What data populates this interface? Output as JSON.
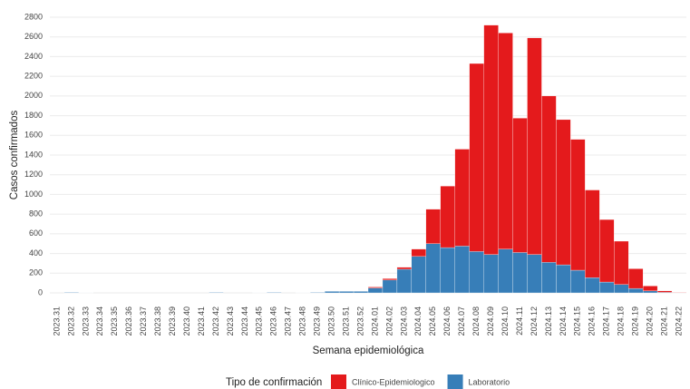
{
  "chart_data": {
    "type": "stacked_bar",
    "x_label": "Semana epidemiológica",
    "y_label": "Casos confirmados",
    "legend_title": "Tipo de confirmación",
    "legend_position": "bottom",
    "grid": true,
    "categories": [
      "2023.31",
      "2023.32",
      "2023.33",
      "2023.34",
      "2023.35",
      "2023.36",
      "2023.37",
      "2023.38",
      "2023.39",
      "2023.40",
      "2023.41",
      "2023.42",
      "2023.43",
      "2023.44",
      "2023.45",
      "2023.46",
      "2023.47",
      "2023.48",
      "2023.49",
      "2023.50",
      "2023.51",
      "2023.52",
      "2024.01",
      "2024.02",
      "2024.03",
      "2024.04",
      "2024.05",
      "2024.06",
      "2024.07",
      "2024.08",
      "2024.09",
      "2024.10",
      "2024.11",
      "2024.12",
      "2024.13",
      "2024.14",
      "2024.15",
      "2024.16",
      "2024.17",
      "2024.18",
      "2024.19",
      "2024.20",
      "2024.21",
      "2024.22"
    ],
    "series": [
      {
        "name": "Clínico-Epidemiologico",
        "color": "#e41a1c",
        "values": [
          0,
          0,
          0,
          0,
          0,
          0,
          0,
          0,
          0,
          0,
          0,
          0,
          0,
          0,
          0,
          0,
          0,
          0,
          0,
          0,
          0,
          0,
          10,
          15,
          20,
          75,
          350,
          625,
          985,
          1910,
          2330,
          2195,
          1365,
          2200,
          1690,
          1475,
          1330,
          890,
          635,
          440,
          200,
          50,
          15,
          3
        ]
      },
      {
        "name": "Laboratorio",
        "color": "#377eb8",
        "values": [
          0,
          5,
          3,
          0,
          0,
          0,
          0,
          0,
          0,
          0,
          0,
          5,
          0,
          0,
          3,
          5,
          0,
          3,
          5,
          15,
          15,
          15,
          50,
          130,
          240,
          370,
          500,
          460,
          475,
          420,
          390,
          445,
          410,
          390,
          310,
          285,
          230,
          155,
          110,
          85,
          45,
          20,
          5,
          2
        ]
      }
    ],
    "ylim": [
      -83,
      2883
    ],
    "yticks": [
      0,
      200,
      400,
      600,
      800,
      1000,
      1200,
      1400,
      1600,
      1800,
      2000,
      2200,
      2400,
      2600,
      2800
    ]
  }
}
